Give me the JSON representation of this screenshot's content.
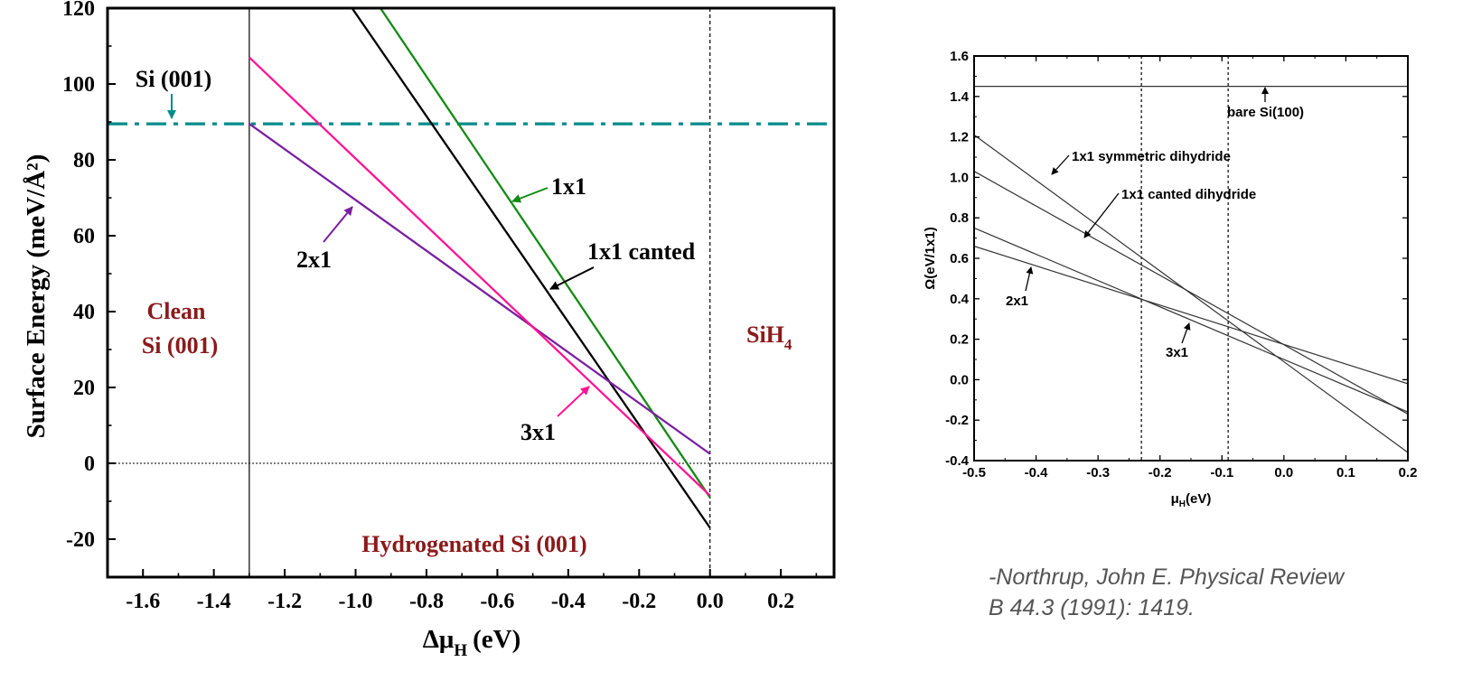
{
  "chart_data": [
    {
      "type": "line",
      "xlabel": "Δμ",
      "xlabel_sub": "H",
      "xlabel_unit": "(eV)",
      "ylabel": "Surface Energy (meV/Å²)",
      "xlim": [
        -1.7,
        0.35
      ],
      "ylim": [
        -30,
        120
      ],
      "x_ticks": [
        -1.6,
        -1.4,
        -1.2,
        -1.0,
        -0.8,
        -0.6,
        -0.4,
        -0.2,
        0.0,
        0.2
      ],
      "x_tick_labels": [
        "-1.6",
        "-1.4",
        "-1.2",
        "-1.0",
        "-0.8",
        "-0.6",
        "-0.4",
        "-0.2",
        "0.0",
        "0.2"
      ],
      "y_ticks": [
        -20,
        0,
        20,
        40,
        60,
        80,
        100,
        120
      ],
      "y_tick_labels": [
        "-20",
        "0",
        "20",
        "40",
        "60",
        "80",
        "100",
        "120"
      ],
      "series": [
        {
          "name": "Si (001)",
          "color": "#008b8b",
          "style": "dash-dot",
          "x": [
            -1.7,
            0.35
          ],
          "y": [
            89.5,
            89.5
          ]
        },
        {
          "name": "1x1",
          "color": "#138a13",
          "style": "solid",
          "x": [
            -0.93,
            0.0
          ],
          "y": [
            120,
            -9
          ]
        },
        {
          "name": "1x1 canted",
          "color": "#000000",
          "style": "solid",
          "x": [
            -1.01,
            0.0
          ],
          "y": [
            120,
            -17
          ]
        },
        {
          "name": "2x1",
          "color": "#7a1fa2",
          "style": "solid",
          "x": [
            -1.3,
            0.0
          ],
          "y": [
            89.5,
            2.5
          ]
        },
        {
          "name": "3x1",
          "color": "#ff1493",
          "style": "solid",
          "x": [
            -1.3,
            0.0
          ],
          "y": [
            107,
            -8.5
          ]
        }
      ],
      "vertical_lines": [
        {
          "x": -1.3,
          "style": "solid"
        },
        {
          "x": 0.0,
          "style": "dotted"
        }
      ],
      "horizontal_lines": [
        {
          "y": 0,
          "style": "dotted"
        }
      ],
      "annotations": {
        "si001": "Si (001)",
        "clean_1": "Clean",
        "clean_2": "Si (001)",
        "sih4": "SiH",
        "sih4_sub": "4",
        "hydrogenated": "Hydrogenated Si (001)",
        "lbl_1x1": "1x1",
        "lbl_canted": "1x1 canted",
        "lbl_2x1": "2x1",
        "lbl_3x1": "3x1"
      }
    },
    {
      "type": "line",
      "xlabel": "μ",
      "xlabel_sub": "H",
      "xlabel_unit": "(eV)",
      "ylabel": "Ω(eV/1x1)",
      "xlim": [
        -0.5,
        0.2
      ],
      "ylim": [
        -0.4,
        1.6
      ],
      "x_ticks": [
        -0.5,
        -0.4,
        -0.3,
        -0.2,
        -0.1,
        0.0,
        0.1,
        0.2
      ],
      "x_tick_labels": [
        "-0.5",
        "-0.4",
        "-0.3",
        "-0.2",
        "-0.1",
        "0.0",
        "0.1",
        "0.2"
      ],
      "y_ticks": [
        -0.4,
        -0.2,
        0.0,
        0.2,
        0.4,
        0.6,
        0.8,
        1.0,
        1.2,
        1.4,
        1.6
      ],
      "y_tick_labels": [
        "-0.4",
        "-0.2",
        "0.0",
        "0.2",
        "0.4",
        "0.6",
        "0.8",
        "1.0",
        "1.2",
        "1.4",
        "1.6"
      ],
      "series": [
        {
          "name": "bare Si(100)",
          "x": [
            -0.5,
            0.2
          ],
          "y": [
            1.45,
            1.45
          ]
        },
        {
          "name": "1x1 symmetric dihydride",
          "x": [
            -0.5,
            0.2
          ],
          "y": [
            1.21,
            -0.36
          ]
        },
        {
          "name": "1x1 canted dihydride",
          "x": [
            -0.5,
            0.2
          ],
          "y": [
            1.03,
            -0.17
          ]
        },
        {
          "name": "2x1",
          "x": [
            -0.5,
            0.2
          ],
          "y": [
            0.66,
            -0.02
          ]
        },
        {
          "name": "3x1",
          "x": [
            -0.5,
            0.2
          ],
          "y": [
            0.75,
            -0.16
          ]
        }
      ],
      "vertical_lines": [
        {
          "x": -0.23,
          "style": "dotted"
        },
        {
          "x": -0.09,
          "style": "dotted"
        }
      ],
      "annotations": {
        "bare": "bare Si(100)",
        "sym": "1x1 symmetric dihydride",
        "canted": "1x1 canted dihydride",
        "lbl_2x1": "2x1",
        "lbl_3x1": "3x1"
      }
    }
  ],
  "citation": {
    "line1": "-Northrup, John E.  Physical Review",
    "line2": "B 44.3 (1991): 1419."
  }
}
